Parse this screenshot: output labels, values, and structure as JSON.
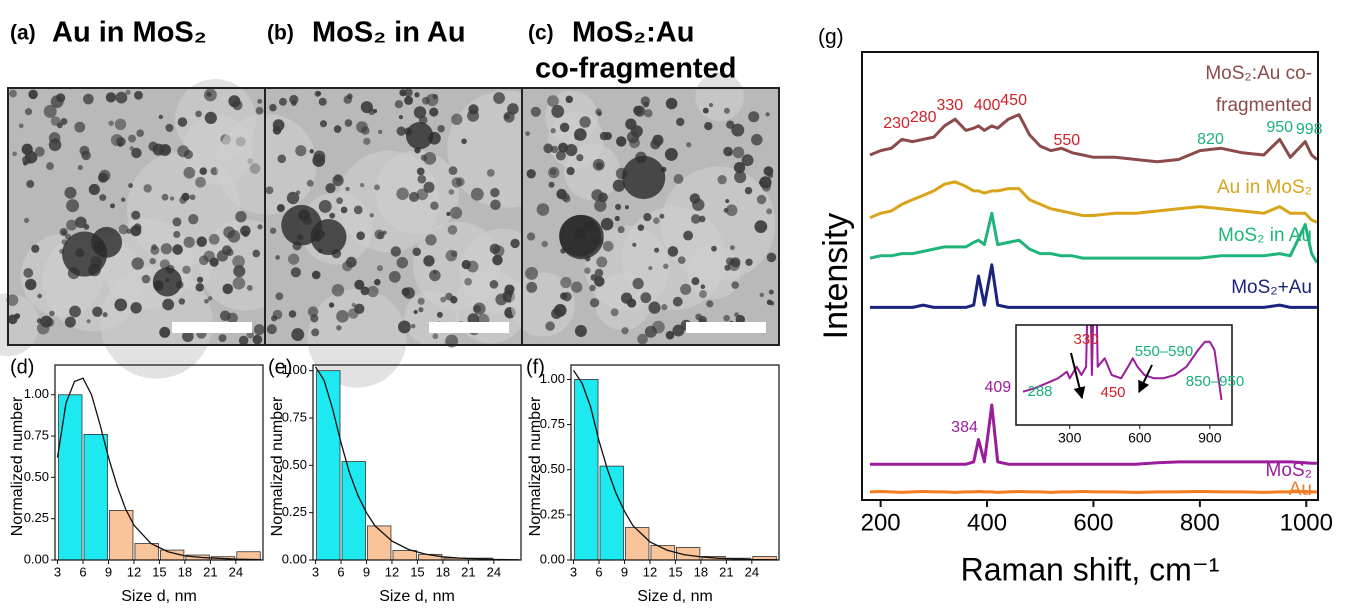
{
  "tem_panels": [
    {
      "label": "(a)",
      "title_lines": [
        "Au in MoS₂"
      ]
    },
    {
      "label": "(b)",
      "title_lines": [
        "MoS₂ in Au"
      ]
    },
    {
      "label": "(c)",
      "title_lines": [
        "MoS₂:Au",
        "co-fragmented"
      ]
    }
  ],
  "chart_data": [
    {
      "type": "histogram",
      "panel_label": "(d)",
      "xlabel": "Size d, nm",
      "ylabel": "Normalized number",
      "bins": [
        3,
        6,
        9,
        12,
        15,
        18,
        21,
        24,
        27
      ],
      "values": [
        1.0,
        0.76,
        0.3,
        0.1,
        0.06,
        0.03,
        0.02,
        0.05
      ],
      "colors": [
        "#1de9f0",
        "#1de9f0",
        "#f9c49a",
        "#f9c49a",
        "#f9c49a",
        "#f9c49a",
        "#f9c49a",
        "#f9c49a"
      ],
      "fit": {
        "x": [
          3,
          4,
          5,
          6,
          7,
          8,
          9,
          10,
          11,
          12,
          14,
          16,
          18,
          20,
          22,
          24,
          27
        ],
        "y": [
          0.62,
          0.95,
          1.08,
          1.1,
          1.0,
          0.82,
          0.62,
          0.45,
          0.31,
          0.21,
          0.1,
          0.05,
          0.025,
          0.015,
          0.01,
          0.005,
          0.002
        ]
      },
      "xlim": [
        2.7,
        27.2
      ],
      "ylim": [
        0,
        1.18
      ],
      "xticks": [
        3,
        6,
        9,
        12,
        15,
        18,
        21,
        24
      ],
      "yticks": [
        {
          "value": 0,
          "label": "0.00"
        },
        {
          "value": 0.25,
          "label": "0.25"
        },
        {
          "value": 0.5,
          "label": "0.50"
        },
        {
          "value": 0.75,
          "label": "0.75"
        },
        {
          "value": 1,
          "label": "1.00"
        }
      ]
    },
    {
      "type": "histogram",
      "panel_label": "(e)",
      "xlabel": "Size d, nm",
      "ylabel": "Normalized number",
      "bins": [
        3,
        6,
        9,
        12,
        15,
        18,
        21,
        24,
        27
      ],
      "values": [
        1.0,
        0.52,
        0.18,
        0.05,
        0.03,
        0.01,
        0.01,
        0.0
      ],
      "colors": [
        "#1de9f0",
        "#1de9f0",
        "#f9c49a",
        "#f9c49a",
        "#f9c49a",
        "#f9c49a",
        "#f9c49a",
        "#f9c49a"
      ],
      "fit": {
        "x": [
          3,
          4,
          5,
          6,
          7,
          8,
          9,
          10,
          12,
          14,
          16,
          18,
          20,
          24,
          27
        ],
        "y": [
          1.02,
          0.95,
          0.8,
          0.62,
          0.46,
          0.34,
          0.25,
          0.18,
          0.1,
          0.055,
          0.03,
          0.017,
          0.01,
          0.003,
          0.001
        ]
      },
      "xlim": [
        2.7,
        27.2
      ],
      "ylim": [
        0,
        1.03
      ],
      "xticks": [
        3,
        6,
        9,
        12,
        15,
        18,
        21,
        24
      ],
      "yticks": [
        {
          "value": 0,
          "label": "0.00"
        },
        {
          "value": 0.25,
          "label": "0.25"
        },
        {
          "value": 0.5,
          "label": "0.50"
        },
        {
          "value": 0.75,
          "label": "0.75"
        },
        {
          "value": 1,
          "label": "1.00"
        }
      ]
    },
    {
      "type": "histogram",
      "panel_label": "(f)",
      "xlabel": "Size d, nm",
      "ylabel": "Normalized number",
      "bins": [
        3,
        6,
        9,
        12,
        15,
        18,
        21,
        24,
        27
      ],
      "values": [
        1.0,
        0.52,
        0.18,
        0.08,
        0.07,
        0.02,
        0.01,
        0.02
      ],
      "colors": [
        "#1de9f0",
        "#1de9f0",
        "#f9c49a",
        "#f9c49a",
        "#f9c49a",
        "#f9c49a",
        "#f9c49a",
        "#f9c49a"
      ],
      "fit": {
        "x": [
          3,
          4,
          5,
          6,
          7,
          8,
          9,
          10,
          12,
          14,
          16,
          18,
          20,
          24,
          27
        ],
        "y": [
          1.05,
          0.98,
          0.85,
          0.66,
          0.5,
          0.37,
          0.27,
          0.19,
          0.1,
          0.055,
          0.03,
          0.017,
          0.01,
          0.003,
          0.001
        ]
      },
      "xlim": [
        2.7,
        27.2
      ],
      "ylim": [
        0,
        1.08
      ],
      "xticks": [
        3,
        6,
        9,
        12,
        15,
        18,
        21,
        24
      ],
      "yticks": [
        {
          "value": 0,
          "label": "0.00"
        },
        {
          "value": 0.25,
          "label": "0.25"
        },
        {
          "value": 0.5,
          "label": "0.50"
        },
        {
          "value": 0.75,
          "label": "0.75"
        },
        {
          "value": 1,
          "label": "1.00"
        }
      ]
    },
    {
      "type": "line",
      "panel_label": "(g)",
      "xlabel": "Raman shift, cm⁻¹",
      "ylabel": "Intensity",
      "x": [
        180,
        200,
        220,
        240,
        260,
        280,
        300,
        320,
        340,
        360,
        375,
        384,
        395,
        409,
        420,
        440,
        460,
        480,
        500,
        520,
        540,
        560,
        580,
        600,
        640,
        680,
        720,
        760,
        800,
        840,
        880,
        920,
        950,
        970,
        998,
        1010,
        1020
      ],
      "series": [
        {
          "name": "MoS₂:Au co-fragmented",
          "color": "#8c4b4b",
          "values": [
            77,
            78,
            78.5,
            80.5,
            80,
            80.5,
            81,
            83.5,
            85,
            82.5,
            83,
            83.5,
            82.5,
            83.5,
            83,
            85,
            86,
            81.5,
            79,
            78,
            78.5,
            77.5,
            77,
            76.5,
            76.5,
            76,
            75.5,
            76,
            78,
            78.5,
            77.5,
            77,
            80.5,
            76.5,
            80,
            77,
            76
          ]
        },
        {
          "name": "Au in MoS₂",
          "color": "#d9a31a",
          "values": [
            63,
            64,
            64.5,
            66,
            67,
            68,
            69,
            70.5,
            71,
            70,
            69,
            69,
            68.5,
            69,
            69,
            69.5,
            69.5,
            67,
            66,
            65,
            64.5,
            64,
            63.5,
            63.5,
            64,
            64,
            64.5,
            65,
            65.5,
            65,
            64.5,
            64,
            65.5,
            64,
            64,
            62.5,
            62
          ]
        },
        {
          "name": "MoS₂ in Au",
          "color": "#1fb57a",
          "values": [
            54,
            54.5,
            54.5,
            55,
            55,
            55.5,
            56,
            56.5,
            56.5,
            56.5,
            57.5,
            58,
            57,
            64,
            57,
            57.5,
            58,
            56,
            55,
            55,
            54.5,
            54.5,
            54,
            54,
            54,
            54,
            54,
            54,
            54,
            54.5,
            54.5,
            54.5,
            55,
            54.5,
            61.5,
            55,
            53
          ]
        },
        {
          "name": "MoS₂+Au",
          "color": "#1a237e",
          "values": [
            43,
            43,
            43,
            43,
            43,
            43.5,
            43,
            43,
            43,
            43,
            43.5,
            50,
            43.5,
            52.5,
            43.5,
            43,
            43,
            43,
            43,
            43,
            43,
            43,
            43,
            43,
            43,
            43,
            43,
            43,
            43,
            43,
            43,
            43,
            43.5,
            43,
            43,
            43,
            43
          ]
        },
        {
          "name": "MoS₂",
          "color": "#9b1d9b",
          "values": [
            8,
            8,
            8,
            8,
            8,
            8,
            8,
            8,
            8,
            8,
            8.5,
            13.5,
            8.5,
            21.2,
            8.5,
            8,
            8,
            8,
            8,
            8,
            8,
            8,
            8,
            8,
            8,
            8,
            8.3,
            8.5,
            8.5,
            8.5,
            8.5,
            8.5,
            8.5,
            8.5,
            8.3,
            8.2,
            8.2
          ]
        },
        {
          "name": "Au",
          "color": "#f47a20",
          "values": [
            1.8,
            1.9,
            1.8,
            1.7,
            1.8,
            1.9,
            1.8,
            1.8,
            1.7,
            1.8,
            1.8,
            1.9,
            1.8,
            1.8,
            1.7,
            1.8,
            1.9,
            1.8,
            1.8,
            1.7,
            1.8,
            1.8,
            1.9,
            1.8,
            1.8,
            1.7,
            1.8,
            1.8,
            1.9,
            1.8,
            1.8,
            1.7,
            1.8,
            1.8,
            1.9,
            1.8,
            1.8
          ]
        }
      ],
      "peak_labels": [
        {
          "values": [
            230,
            280,
            330,
            400,
            450,
            550
          ],
          "color": "#d0202a"
        },
        {
          "values": [
            820,
            950,
            998
          ],
          "color": "#19b07a"
        },
        {
          "values": [
            384,
            409
          ],
          "color": "#9b1d9b"
        }
      ],
      "xlim": [
        165,
        1022
      ],
      "ylim": [
        0,
        100
      ],
      "xticks": [
        200,
        400,
        600,
        800,
        1000
      ]
    },
    {
      "type": "line",
      "x": [
        100,
        150,
        200,
        250,
        288,
        300,
        330,
        350,
        370,
        384,
        395,
        409,
        420,
        450,
        480,
        520,
        550,
        570,
        590,
        620,
        660,
        700,
        750,
        800,
        850,
        880,
        900,
        920,
        950
      ],
      "series": [
        {
          "color": "#9b1d9b",
          "values": [
            2,
            2.2,
            2.5,
            2.8,
            3.2,
            2.8,
            3.5,
            3,
            3.5,
            12,
            3,
            12,
            3.5,
            4,
            3,
            2.8,
            3.5,
            4,
            3.5,
            3,
            2.8,
            2.8,
            3,
            3.5,
            4.5,
            5,
            5,
            4.5,
            1.5
          ]
        }
      ],
      "annotations": [
        {
          "text": "330",
          "color": "#d0202a"
        },
        {
          "text": "288",
          "color": "#19b07a"
        },
        {
          "text": "450",
          "color": "#d0202a"
        },
        {
          "text": "550–590",
          "color": "#19b07a"
        },
        {
          "text": "850–950",
          "color": "#19b07a"
        }
      ],
      "xlim": [
        70,
        995
      ],
      "ylim": [
        0,
        6
      ],
      "xticks": [
        300,
        600,
        900
      ]
    }
  ]
}
